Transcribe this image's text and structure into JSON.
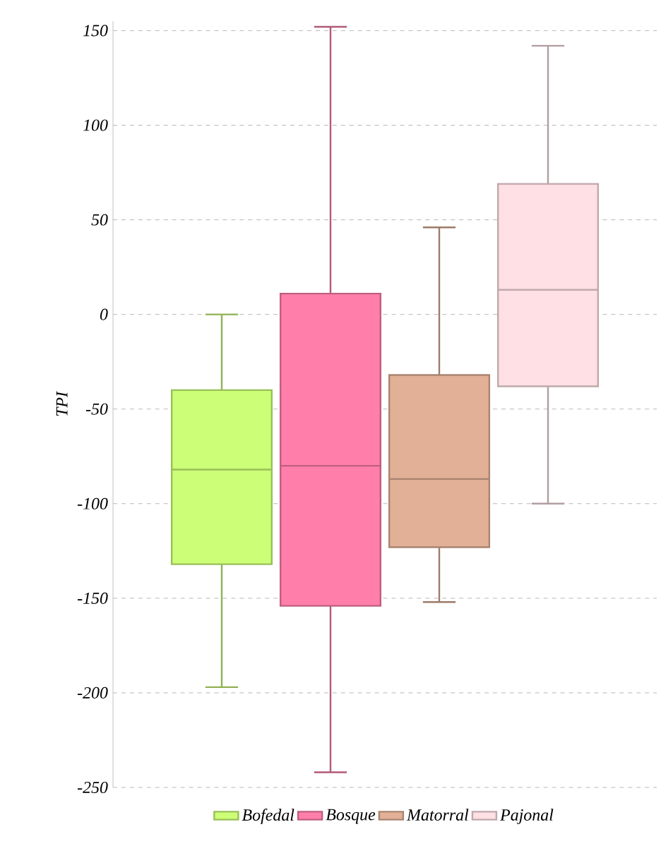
{
  "chart_data": {
    "type": "box",
    "ylabel": "TPI",
    "categories": [
      null
    ],
    "series": [
      {
        "name": "Bofedal",
        "color": "#ccff77",
        "boxes": [
          {
            "low": -197,
            "q1": -132,
            "median": -82,
            "q3": -40,
            "high": 0
          }
        ]
      },
      {
        "name": "Bosque",
        "color": "#ff7faa",
        "boxes": [
          {
            "low": -242,
            "q1": -154,
            "median": -80,
            "q3": 11,
            "high": 152
          }
        ]
      },
      {
        "name": "Matorral",
        "color": "#e2b096",
        "boxes": [
          {
            "low": -152,
            "q1": -123,
            "median": -87,
            "q3": -32,
            "high": 46
          }
        ]
      },
      {
        "name": "Pajonal",
        "color": "#ffe0e4",
        "boxes": [
          {
            "low": -100,
            "q1": -38,
            "median": 13,
            "q3": 69,
            "high": 142
          }
        ]
      }
    ],
    "ylim": [
      -250,
      155
    ],
    "yticks": [
      -250,
      -200,
      -150,
      -100,
      -50,
      0,
      50,
      100,
      150
    ],
    "grid": "y",
    "legend": "bottom",
    "tick_labels": "y"
  }
}
